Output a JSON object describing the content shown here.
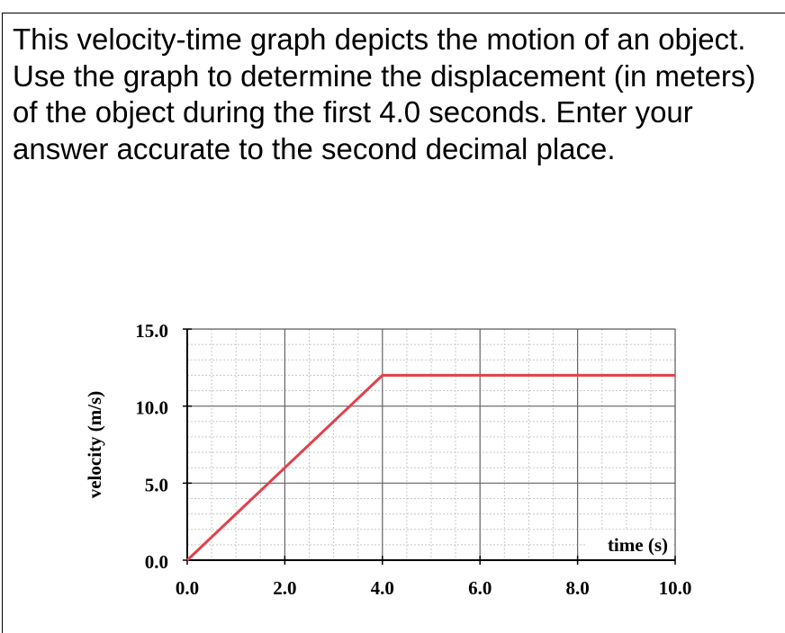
{
  "question": {
    "text": "This velocity-time graph depicts the motion of an object. Use the graph to determine the displacement (in meters) of the object during the first 4.0 seconds. Enter your answer accurate to the second decimal place."
  },
  "chart_data": {
    "type": "line",
    "xlabel": "time (s)",
    "ylabel": "velocity (m/s)",
    "xlim": [
      0,
      10
    ],
    "ylim": [
      0,
      15
    ],
    "x_ticks": [
      0,
      2,
      4,
      6,
      8,
      10
    ],
    "x_tick_labels": [
      "0.0",
      "2.0",
      "4.0",
      "6.0",
      "8.0",
      "10.0"
    ],
    "y_ticks": [
      0,
      5,
      10,
      15
    ],
    "y_tick_labels": [
      "0.0",
      "5.0",
      "10.0",
      "15.0"
    ],
    "grid": true,
    "minor_grid": true,
    "series": [
      {
        "x": [
          0,
          4,
          10
        ],
        "y": [
          0,
          12,
          12
        ],
        "color": "#e0414c"
      }
    ]
  }
}
